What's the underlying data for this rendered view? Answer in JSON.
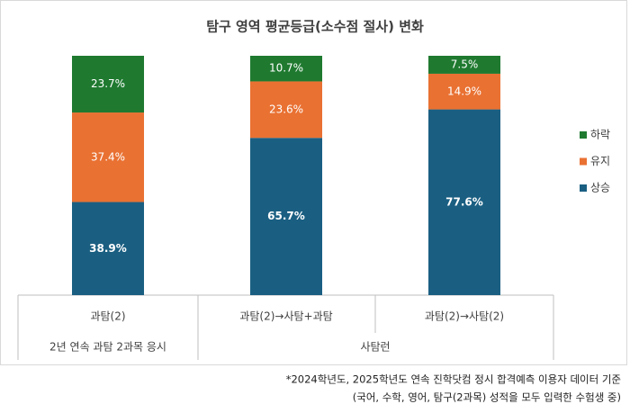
{
  "chart_data": {
    "type": "stacked_bar_100",
    "title": "탐구 영역 평균등급(소수점 절사) 변화",
    "categories": [
      "과탐(2)",
      "과탐(2)→사탐+과탐",
      "과탐(2)→사탐(2)"
    ],
    "groups": [
      "2년 연속 과탐 2과목 응시",
      "사탐런"
    ],
    "series": [
      {
        "name": "상승",
        "color": "#1a5f82",
        "values": [
          38.9,
          65.7,
          77.6
        ],
        "value_labels": [
          "38.9%",
          "65.7%",
          "77.6%"
        ]
      },
      {
        "name": "유지",
        "color": "#e97132",
        "values": [
          37.4,
          23.6,
          14.9
        ],
        "value_labels": [
          "37.4%",
          "23.6%",
          "14.9%"
        ]
      },
      {
        "name": "하락",
        "color": "#1f7a30",
        "values": [
          23.7,
          10.7,
          7.5
        ],
        "value_labels": [
          "23.7%",
          "10.7%",
          "7.5%"
        ]
      }
    ],
    "footnotes": [
      "*2024학년도, 2025학년도 연속 진학닷컴 정시 합격예측 이용자 데이터 기준",
      "(국어, 수학, 영어, 탐구(2과목) 성적을 모두 입력한 수험생 중)"
    ]
  }
}
